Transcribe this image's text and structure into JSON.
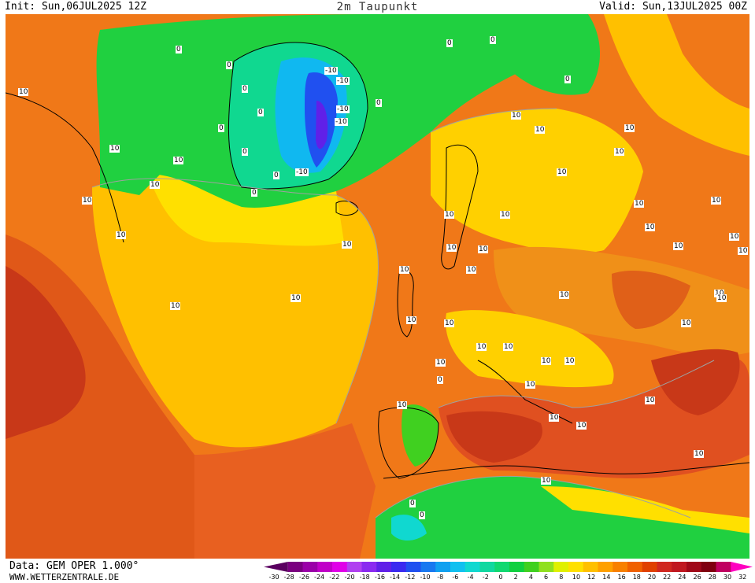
{
  "header": {
    "init": "Init: Sun,06JUL2025 12Z",
    "title": "2m Taupunkt",
    "valid": "Valid: Sun,13JUL2025 00Z"
  },
  "footer": {
    "data_source": "Data: GEM OPER 1.000°",
    "website": "WWW.WETTERZENTRALE.DE"
  },
  "colorbar": {
    "ticks": [
      "-30",
      "-28",
      "-26",
      "-24",
      "-22",
      "-20",
      "-18",
      "-16",
      "-14",
      "-12",
      "-10",
      "-8",
      "-6",
      "-4",
      "-2",
      "0",
      "2",
      "4",
      "6",
      "8",
      "10",
      "12",
      "14",
      "16",
      "18",
      "20",
      "22",
      "24",
      "26",
      "28",
      "30",
      "32"
    ],
    "colors": [
      "#5a0060",
      "#7a0080",
      "#9a00a8",
      "#c000c8",
      "#e000e8",
      "#b040f0",
      "#8a2af0",
      "#6020e8",
      "#3a2af0",
      "#2050f0",
      "#1878f0",
      "#10a0f0",
      "#10c0f0",
      "#10d8d0",
      "#10d8a0",
      "#10d870",
      "#10d040",
      "#40d020",
      "#90e020",
      "#e0f000",
      "#ffe000",
      "#ffc000",
      "#ffa000",
      "#f88000",
      "#f06000",
      "#e04000",
      "#d02820",
      "#c01820",
      "#a00818",
      "#800010",
      "#c00060",
      "#ff00c0"
    ]
  },
  "contour_labels": [
    "10",
    "10",
    "10",
    "10",
    "10",
    "10",
    "0",
    "0",
    "0",
    "0",
    "0",
    "0",
    "0",
    "0",
    "-10",
    "-10",
    "-10",
    "-10",
    "-10",
    "0",
    "0",
    "0",
    "0",
    "10",
    "10",
    "10",
    "10",
    "10",
    "10",
    "10",
    "10",
    "10",
    "10",
    "10",
    "10",
    "10",
    "10",
    "10",
    "10",
    "10",
    "10",
    "10",
    "10",
    "10",
    "10",
    "10",
    "10",
    "10",
    "10",
    "10",
    "10",
    "10",
    "10",
    "10",
    "10",
    "10",
    "10",
    "10",
    "10",
    "10",
    "10",
    "0",
    "0",
    "0"
  ]
}
